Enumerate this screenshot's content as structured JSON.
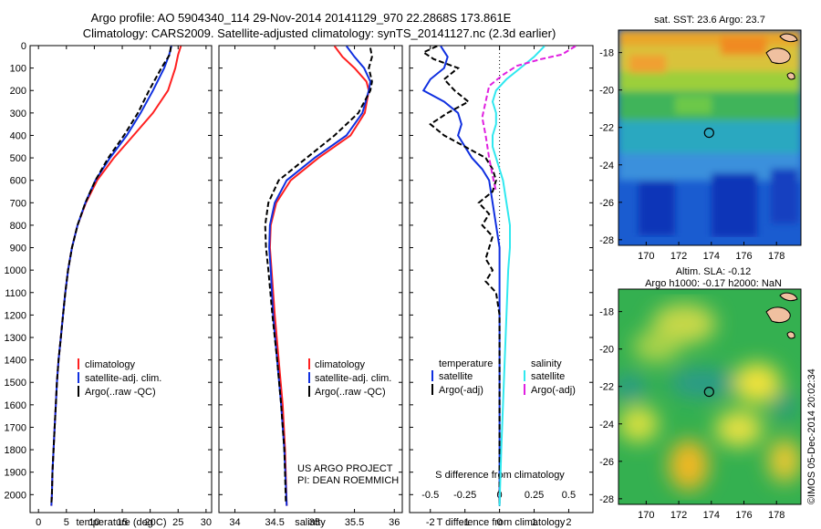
{
  "header": {
    "line1": "Argo profile: AO 5904340_114 29-Nov-2014 20141129_970 22.2868S 173.861E",
    "line2": "Climatology: CARS2009. Satellite-adjusted climatology: synTS_20141127.nc (2.3d earlier)"
  },
  "colors": {
    "climatology": "#ff2020",
    "satellite": "#1030e0",
    "argo": "#000000",
    "sal_satellite": "#30e8ef",
    "sal_argo": "#e020e0"
  },
  "chart_data": [
    {
      "type": "line",
      "id": "temp",
      "xlabel": "temperature (deg C)",
      "ylabel": "",
      "xlim": [
        -1.5,
        31
      ],
      "ylim": [
        2080,
        0
      ],
      "xticks": [
        0,
        5,
        10,
        15,
        20,
        25,
        30
      ],
      "yticks": [
        0,
        100,
        200,
        300,
        400,
        500,
        600,
        700,
        800,
        900,
        1000,
        1100,
        1200,
        1300,
        1400,
        1500,
        1600,
        1700,
        1800,
        1900,
        2000
      ],
      "legend": [
        "climatology",
        "satellite-adj. clim.",
        "Argo(..raw -QC)"
      ],
      "series": [
        {
          "name": "climatology",
          "color": "#ff2020",
          "points": [
            [
              25.5,
              2
            ],
            [
              25.0,
              40
            ],
            [
              24.5,
              100
            ],
            [
              23.2,
              200
            ],
            [
              20.5,
              300
            ],
            [
              17.0,
              400
            ],
            [
              13.5,
              500
            ],
            [
              10.5,
              600
            ],
            [
              8.5,
              700
            ],
            [
              7.0,
              800
            ],
            [
              6.0,
              900
            ],
            [
              5.3,
              1000
            ],
            [
              4.8,
              1100
            ],
            [
              4.4,
              1200
            ],
            [
              4.0,
              1300
            ],
            [
              3.6,
              1400
            ],
            [
              3.3,
              1500
            ],
            [
              3.1,
              1600
            ],
            [
              2.9,
              1700
            ],
            [
              2.7,
              1800
            ],
            [
              2.5,
              1900
            ],
            [
              2.4,
              2000
            ],
            [
              2.3,
              2050
            ]
          ]
        },
        {
          "name": "satellite-adj. clim.",
          "color": "#1030e0",
          "points": [
            [
              23.8,
              2
            ],
            [
              23.4,
              40
            ],
            [
              22.5,
              100
            ],
            [
              20.5,
              200
            ],
            [
              18.3,
              300
            ],
            [
              15.8,
              400
            ],
            [
              12.8,
              500
            ],
            [
              10.2,
              600
            ],
            [
              8.4,
              700
            ],
            [
              7.0,
              800
            ],
            [
              6.0,
              900
            ],
            [
              5.3,
              1000
            ],
            [
              4.8,
              1100
            ],
            [
              4.4,
              1200
            ],
            [
              4.0,
              1300
            ],
            [
              3.6,
              1400
            ],
            [
              3.3,
              1500
            ],
            [
              3.1,
              1600
            ],
            [
              2.9,
              1700
            ],
            [
              2.7,
              1800
            ],
            [
              2.5,
              1900
            ],
            [
              2.4,
              2000
            ],
            [
              2.3,
              2050
            ]
          ]
        },
        {
          "name": "Argo(..raw -QC)",
          "color": "#000000",
          "dash": true,
          "points": [
            [
              23.7,
              5
            ],
            [
              23.5,
              40
            ],
            [
              22.0,
              100
            ],
            [
              19.8,
              200
            ],
            [
              17.8,
              300
            ],
            [
              15.3,
              400
            ],
            [
              12.5,
              500
            ],
            [
              10.2,
              600
            ],
            [
              8.4,
              700
            ],
            [
              7.0,
              800
            ],
            [
              6.0,
              900
            ],
            [
              5.3,
              1000
            ],
            [
              4.8,
              1100
            ],
            [
              4.4,
              1200
            ],
            [
              4.0,
              1300
            ],
            [
              3.6,
              1400
            ],
            [
              3.3,
              1500
            ],
            [
              3.1,
              1600
            ],
            [
              2.9,
              1700
            ],
            [
              2.7,
              1800
            ],
            [
              2.5,
              1900
            ],
            [
              2.4,
              2000
            ],
            [
              2.3,
              2040
            ]
          ]
        }
      ]
    },
    {
      "type": "line",
      "id": "sal",
      "xlabel": "salinity",
      "ylabel": "",
      "xlim": [
        33.8,
        36.1
      ],
      "ylim": [
        2080,
        0
      ],
      "xticks": [
        34,
        34.5,
        35,
        35.5,
        36
      ],
      "legend": [
        "climatology",
        "satellite-adj. clim.",
        "Argo(..raw -QC)"
      ],
      "annotation": [
        "US ARGO PROJECT",
        "PI: DEAN ROEMMICH"
      ],
      "series": [
        {
          "name": "climatology",
          "color": "#ff2020",
          "points": [
            [
              35.25,
              2
            ],
            [
              35.35,
              50
            ],
            [
              35.5,
              100
            ],
            [
              35.65,
              160
            ],
            [
              35.68,
              200
            ],
            [
              35.63,
              300
            ],
            [
              35.45,
              400
            ],
            [
              35.05,
              500
            ],
            [
              34.7,
              600
            ],
            [
              34.52,
              700
            ],
            [
              34.45,
              800
            ],
            [
              34.44,
              900
            ],
            [
              34.46,
              1000
            ],
            [
              34.5,
              1200
            ],
            [
              34.55,
              1400
            ],
            [
              34.6,
              1600
            ],
            [
              34.63,
              1800
            ],
            [
              34.65,
              2050
            ]
          ]
        },
        {
          "name": "satellite-adj. clim.",
          "color": "#1030e0",
          "points": [
            [
              35.4,
              2
            ],
            [
              35.5,
              50
            ],
            [
              35.62,
              100
            ],
            [
              35.7,
              160
            ],
            [
              35.68,
              200
            ],
            [
              35.6,
              300
            ],
            [
              35.4,
              400
            ],
            [
              35.0,
              500
            ],
            [
              34.65,
              600
            ],
            [
              34.5,
              700
            ],
            [
              34.44,
              800
            ],
            [
              34.43,
              900
            ],
            [
              34.45,
              1000
            ],
            [
              34.48,
              1200
            ],
            [
              34.53,
              1400
            ],
            [
              34.58,
              1600
            ],
            [
              34.62,
              1800
            ],
            [
              34.65,
              2050
            ]
          ]
        },
        {
          "name": "Argo(..raw -QC)",
          "color": "#000000",
          "dash": true,
          "points": [
            [
              35.7,
              10
            ],
            [
              35.72,
              50
            ],
            [
              35.68,
              100
            ],
            [
              35.72,
              160
            ],
            [
              35.7,
              200
            ],
            [
              35.55,
              300
            ],
            [
              35.25,
              400
            ],
            [
              34.9,
              500
            ],
            [
              34.55,
              600
            ],
            [
              34.42,
              700
            ],
            [
              34.38,
              800
            ],
            [
              34.39,
              900
            ],
            [
              34.42,
              1000
            ],
            [
              34.47,
              1200
            ],
            [
              34.53,
              1400
            ],
            [
              34.58,
              1600
            ],
            [
              34.62,
              1800
            ],
            [
              34.64,
              2040
            ]
          ]
        }
      ]
    },
    {
      "type": "line",
      "id": "diff",
      "xlabel": "T difference from climatology",
      "xlabel_top": "S difference from climatology",
      "xlim": [
        -2.6,
        2.7
      ],
      "ylim": [
        2080,
        0
      ],
      "xticks": [
        -2,
        -1,
        0,
        1,
        2
      ],
      "xticks_top": [
        "-0.5",
        "-0.25",
        "0",
        "0.25",
        "0.5"
      ],
      "legend_temperature": [
        "temperature",
        "satellite",
        "Argo(-adj)"
      ],
      "legend_salinity": [
        "salinity",
        "satellite",
        "Argo(-adj)"
      ],
      "series": [
        {
          "name": "satellite",
          "color": "#1030e0",
          "points": [
            [
              -1.7,
              2
            ],
            [
              -1.5,
              50
            ],
            [
              -1.6,
              100
            ],
            [
              -2.0,
              150
            ],
            [
              -2.2,
              200
            ],
            [
              -1.6,
              250
            ],
            [
              -1.2,
              300
            ],
            [
              -1.1,
              350
            ],
            [
              -1.2,
              400
            ],
            [
              -1.0,
              450
            ],
            [
              -0.8,
              500
            ],
            [
              -0.5,
              550
            ],
            [
              -0.3,
              600
            ],
            [
              -0.2,
              700
            ],
            [
              -0.1,
              800
            ],
            [
              0,
              900
            ],
            [
              0,
              2050
            ]
          ]
        },
        {
          "name": "Argo(-adj)",
          "color": "#000000",
          "dash": true,
          "points": [
            [
              -1.8,
              2
            ],
            [
              -2.2,
              30
            ],
            [
              -1.9,
              60
            ],
            [
              -1.2,
              100
            ],
            [
              -1.6,
              150
            ],
            [
              -1.3,
              200
            ],
            [
              -0.9,
              250
            ],
            [
              -1.5,
              300
            ],
            [
              -2.0,
              350
            ],
            [
              -1.6,
              400
            ],
            [
              -1.0,
              450
            ],
            [
              -0.4,
              500
            ],
            [
              -0.2,
              550
            ],
            [
              -0.1,
              600
            ],
            [
              -0.2,
              650
            ],
            [
              -0.6,
              700
            ],
            [
              -0.3,
              750
            ],
            [
              -0.5,
              800
            ],
            [
              -0.2,
              850
            ],
            [
              -0.3,
              900
            ],
            [
              -0.4,
              950
            ],
            [
              -0.2,
              1000
            ],
            [
              -0.4,
              1050
            ],
            [
              -0.1,
              1100
            ],
            [
              0,
              1200
            ],
            [
              0,
              2040
            ]
          ]
        },
        {
          "name": "satellite",
          "color": "#30e8ef",
          "points": [
            [
              1.3,
              2
            ],
            [
              1.0,
              50
            ],
            [
              0.6,
              100
            ],
            [
              0.2,
              150
            ],
            [
              -0.1,
              200
            ],
            [
              -0.2,
              250
            ],
            [
              -0.1,
              300
            ],
            [
              -0.1,
              350
            ],
            [
              -0.2,
              400
            ],
            [
              -0.2,
              450
            ],
            [
              -0.1,
              500
            ],
            [
              0,
              550
            ],
            [
              0.1,
              600
            ],
            [
              0.2,
              700
            ],
            [
              0.3,
              800
            ],
            [
              0.3,
              900
            ],
            [
              0.25,
              1000
            ],
            [
              0.2,
              1200
            ],
            [
              0.15,
              1400
            ],
            [
              0.1,
              1600
            ],
            [
              0.05,
              1800
            ],
            [
              0,
              2050
            ]
          ]
        },
        {
          "name": "Argo(-adj)",
          "color": "#e020e0",
          "dash": true,
          "points": [
            [
              2.2,
              2
            ],
            [
              1.8,
              40
            ],
            [
              1.2,
              60
            ],
            [
              0.5,
              90
            ],
            [
              0.1,
              130
            ],
            [
              -0.3,
              180
            ],
            [
              -0.4,
              250
            ],
            [
              -0.5,
              320
            ],
            [
              -0.4,
              400
            ],
            [
              -0.3,
              500
            ],
            [
              -0.2,
              580
            ],
            [
              -0.1,
              650
            ]
          ]
        }
      ]
    },
    {
      "type": "heatmap",
      "id": "sst",
      "title": "sat. SST: 23.6 Argo: 23.7",
      "xlim": [
        168.3,
        179.5
      ],
      "ylim": [
        -28.3,
        -16.8
      ],
      "xticks": [
        170,
        172,
        174,
        176,
        178
      ],
      "yticks": [
        -18,
        -20,
        -22,
        -24,
        -26,
        -28
      ],
      "marker": [
        173.861,
        -22.2868
      ]
    },
    {
      "type": "heatmap",
      "id": "sla",
      "title_line1": "Altim. SLA: -0.12",
      "title_line2": "Argo h1000: -0.17 h2000: NaN",
      "xlim": [
        168.3,
        179.5
      ],
      "ylim": [
        -28.3,
        -16.8
      ],
      "xticks": [
        170,
        172,
        174,
        176,
        178
      ],
      "yticks": [
        -18,
        -20,
        -22,
        -24,
        -26,
        -28
      ],
      "marker": [
        173.861,
        -22.2868
      ]
    }
  ],
  "footer": {
    "stamp": "©IMOS 05-Dec-2014 20:02:34"
  }
}
